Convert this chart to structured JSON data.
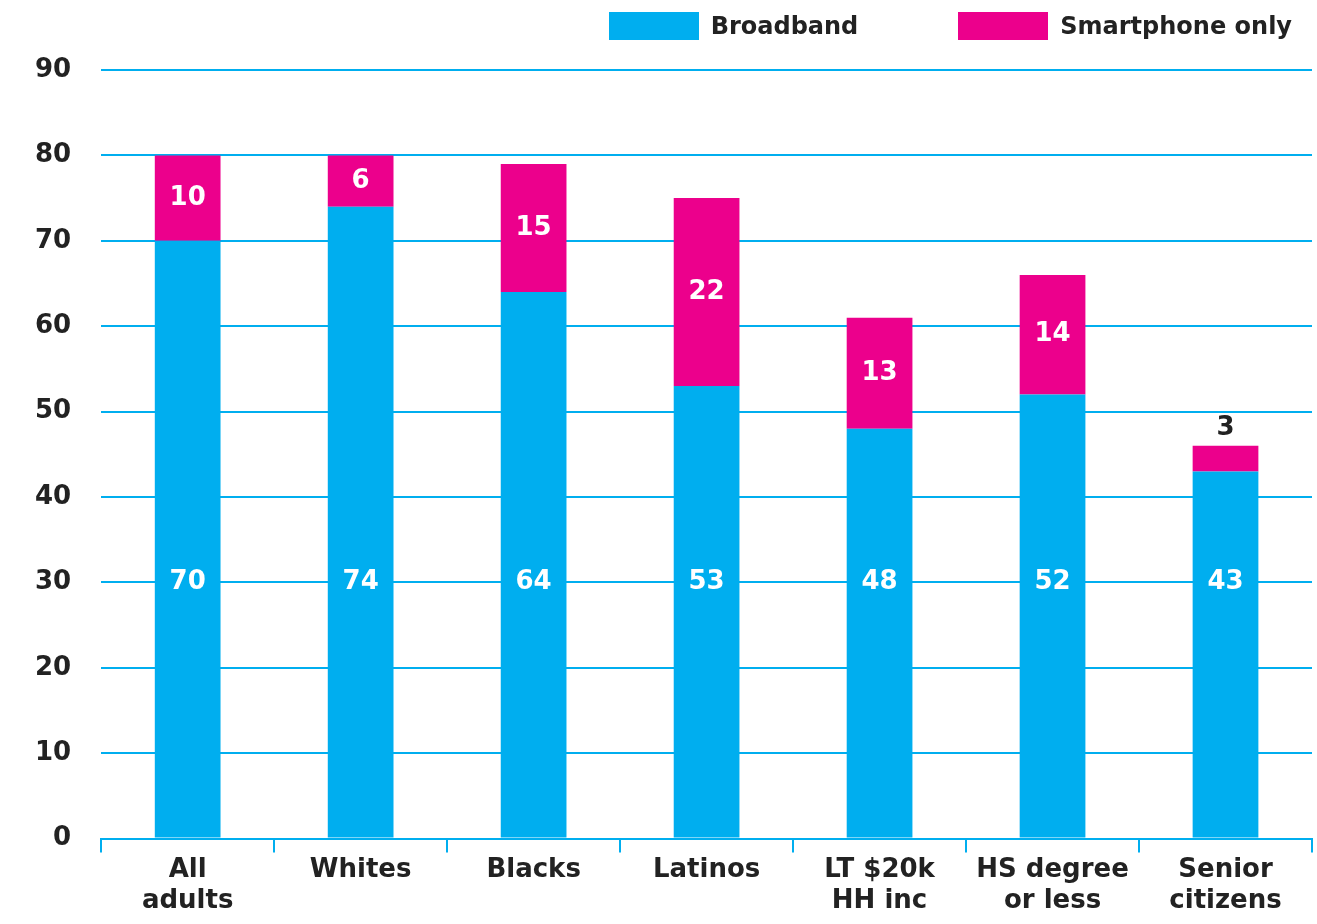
{
  "chart_data": {
    "type": "bar",
    "stacked": true,
    "categories": [
      "All adults",
      "Whites",
      "Blacks",
      "Latinos",
      "LT $20k HH inc",
      "HS degree or less",
      "Senior citizens"
    ],
    "series": [
      {
        "name": "Broadband",
        "color": "#00aeef",
        "values": [
          70,
          74,
          64,
          53,
          48,
          52,
          43
        ]
      },
      {
        "name": "Smartphone only",
        "color": "#ec008c",
        "values": [
          10,
          6,
          15,
          22,
          13,
          14,
          3
        ]
      }
    ],
    "ylim": [
      0,
      90
    ],
    "yticks": [
      0,
      10,
      20,
      30,
      40,
      50,
      60,
      70,
      80,
      90
    ],
    "grid": "y",
    "legend": "top right",
    "data_labels": true
  }
}
